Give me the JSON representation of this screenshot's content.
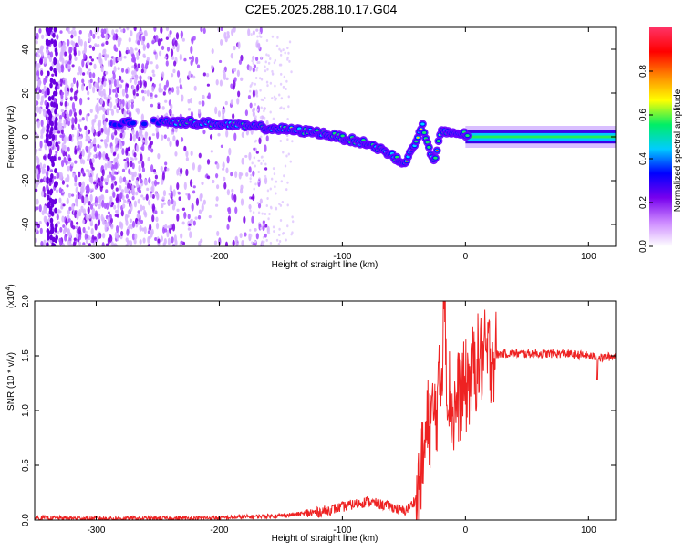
{
  "title": "C2E5.2025.288.10.17.G04",
  "chart_data": [
    {
      "type": "heatmap",
      "xlabel": "Height of straight line (km)",
      "ylabel": "Frequency (Hz)",
      "xlim": [
        -350,
        122
      ],
      "ylim": [
        -50,
        50
      ],
      "xticks": [
        -300,
        -200,
        -100,
        0,
        100
      ],
      "yticks": [
        -40,
        -20,
        0,
        20,
        40
      ],
      "colorbar": {
        "label": "Normalized spectral amplitude",
        "range": [
          0,
          1
        ],
        "ticks": [
          "0.0",
          "0.2",
          "0.4",
          "0.6",
          "0.8"
        ],
        "colors": [
          "#ffffff",
          "#cc88ff",
          "#7700ee",
          "#0000ff",
          "#00ccff",
          "#00ee66",
          "#ffff00",
          "#ff8800",
          "#ff0000",
          "#ff3366"
        ]
      },
      "ridge": {
        "x": [
          -300,
          -240,
          -200,
          -160,
          -120,
          -80,
          -60,
          -50,
          -45,
          -40,
          -35,
          -30,
          -25,
          -20,
          -10,
          0,
          50,
          122
        ],
        "y": [
          6,
          7,
          6,
          4,
          2,
          -3,
          -8,
          -13,
          -6,
          -3,
          6,
          -5,
          -12,
          2,
          2,
          1,
          0,
          0
        ]
      },
      "grid": false
    },
    {
      "type": "line",
      "xlabel": "Height of straight line (km)",
      "ylabel": "SNR (10 * v/v)",
      "yscale_label": "(x10",
      "yscale_exp": "4",
      "xlim": [
        -350,
        122
      ],
      "ylim": [
        0,
        2.0
      ],
      "xticks": [
        -300,
        -200,
        -100,
        0,
        100
      ],
      "yticks": [
        "0.0",
        "0.5",
        "1.0",
        "1.5",
        "2.0"
      ],
      "series_color": "#ee2222",
      "series": {
        "x": [
          -350,
          -300,
          -250,
          -200,
          -150,
          -120,
          -100,
          -80,
          -60,
          -50,
          -45,
          -40,
          -35,
          -30,
          -25,
          -20,
          -17,
          -15,
          -10,
          -5,
          0,
          10,
          20,
          30,
          50,
          80,
          100,
          110,
          122
        ],
        "y": [
          0.02,
          0.015,
          0.015,
          0.02,
          0.04,
          0.07,
          0.12,
          0.17,
          0.12,
          0.08,
          0.12,
          0.2,
          0.5,
          0.9,
          0.95,
          1.25,
          2.0,
          1.3,
          0.95,
          1.15,
          1.2,
          1.45,
          1.5,
          1.52,
          1.52,
          1.52,
          1.5,
          1.48,
          1.5
        ]
      },
      "grid": false
    }
  ]
}
